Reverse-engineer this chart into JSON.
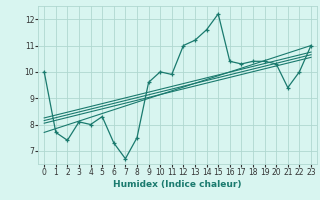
{
  "xlabel": "Humidex (Indice chaleur)",
  "bg_color": "#d8f5f0",
  "line_color": "#1a7a6e",
  "grid_color": "#b0d8d0",
  "xlim": [
    -0.5,
    23.5
  ],
  "ylim": [
    6.5,
    12.5
  ],
  "xticks": [
    0,
    1,
    2,
    3,
    4,
    5,
    6,
    7,
    8,
    9,
    10,
    11,
    12,
    13,
    14,
    15,
    16,
    17,
    18,
    19,
    20,
    21,
    22,
    23
  ],
  "yticks": [
    7,
    8,
    9,
    10,
    11,
    12
  ],
  "main_x": [
    0,
    1,
    2,
    3,
    4,
    5,
    6,
    7,
    8,
    9,
    10,
    11,
    12,
    13,
    14,
    15,
    16,
    17,
    18,
    19,
    20,
    21,
    22,
    23
  ],
  "main_y": [
    10.0,
    7.7,
    7.4,
    8.1,
    8.0,
    8.3,
    7.3,
    6.7,
    7.5,
    9.6,
    10.0,
    9.9,
    11.0,
    11.2,
    11.6,
    12.2,
    10.4,
    10.3,
    10.4,
    10.4,
    10.3,
    9.4,
    10.0,
    11.0
  ],
  "reg_lines": [
    {
      "x0": 0,
      "y0": 7.7,
      "x1": 23,
      "y1": 11.0
    },
    {
      "x0": 0,
      "y0": 8.05,
      "x1": 23,
      "y1": 10.55
    },
    {
      "x0": 0,
      "y0": 8.15,
      "x1": 23,
      "y1": 10.65
    },
    {
      "x0": 0,
      "y0": 8.25,
      "x1": 23,
      "y1": 10.75
    }
  ]
}
